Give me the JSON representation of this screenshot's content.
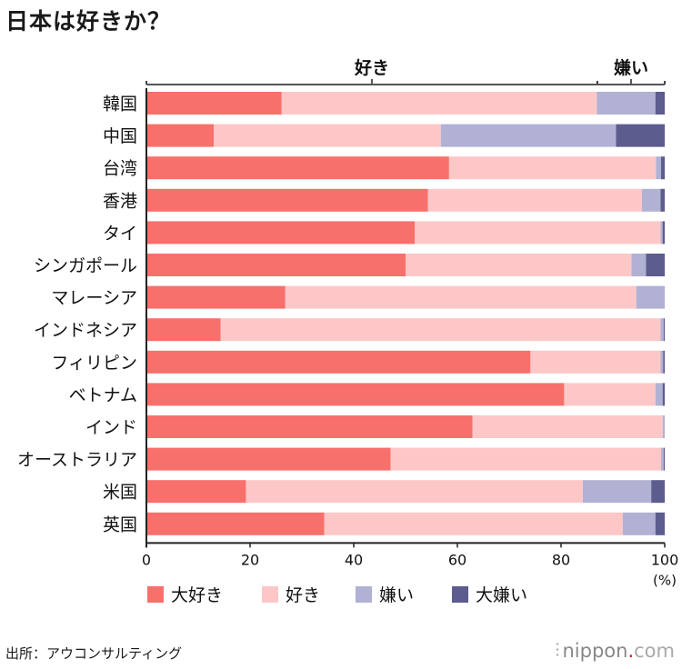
{
  "title": "日本は好きか？",
  "source": "出所：アウコンサルティング",
  "brand": {
    "glyph": "⫶",
    "name": "nippon",
    "dot": ".",
    "tld": "com"
  },
  "groups": [
    {
      "label": "好き",
      "range": [
        0,
        87
      ]
    },
    {
      "label": "嫌い",
      "range": [
        87,
        100
      ]
    }
  ],
  "chart_data": {
    "type": "bar",
    "orientation": "horizontal",
    "stacked": true,
    "title": "日本は好きか？",
    "xlabel": "(%)",
    "xlim": [
      0,
      100
    ],
    "xticks": [
      0,
      20,
      40,
      60,
      80,
      100
    ],
    "legend_position": "bottom",
    "categories": [
      "韓国",
      "中国",
      "台湾",
      "香港",
      "タイ",
      "シンガポール",
      "マレーシア",
      "インドネシア",
      "フィリピン",
      "ベトナム",
      "インド",
      "オーストラリア",
      "米国",
      "英国"
    ],
    "series": [
      {
        "name": "大好き",
        "color": "#f7706c",
        "values": [
          26.1,
          13.0,
          58.4,
          54.3,
          51.8,
          50.0,
          26.8,
          14.3,
          74.1,
          80.6,
          62.9,
          47.1,
          19.2,
          34.3
        ]
      },
      {
        "name": "好き",
        "color": "#fec7c7",
        "values": [
          60.8,
          43.8,
          39.9,
          41.3,
          47.4,
          43.6,
          67.7,
          84.9,
          25.1,
          17.6,
          36.7,
          52.2,
          65.0,
          57.6
        ]
      },
      {
        "name": "嫌い",
        "color": "#b1b1d4",
        "values": [
          11.3,
          33.8,
          1.0,
          3.6,
          0.4,
          2.8,
          5.5,
          0.6,
          0.5,
          1.4,
          0.4,
          0.5,
          13.2,
          6.3
        ]
      },
      {
        "name": "大嫌い",
        "color": "#5c5c8e",
        "values": [
          1.8,
          9.4,
          0.7,
          0.8,
          0.4,
          3.6,
          0.0,
          0.2,
          0.3,
          0.4,
          0.0,
          0.2,
          2.6,
          1.8
        ]
      }
    ]
  }
}
